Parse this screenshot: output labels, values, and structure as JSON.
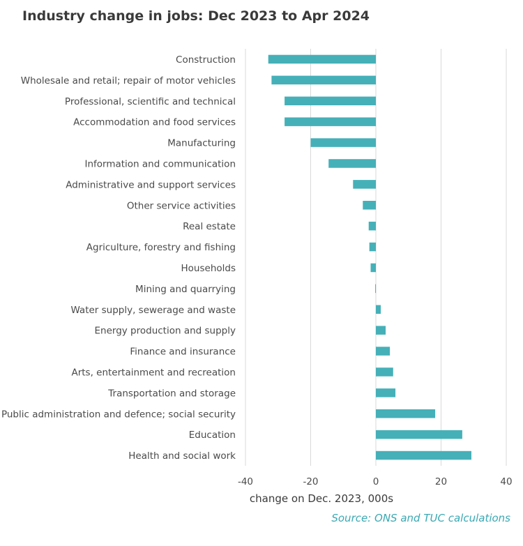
{
  "title": "Industry change in jobs:  Dec 2023 to Apr 2024",
  "source": "Source: ONS and TUC calculations",
  "chart_data": {
    "type": "bar",
    "orientation": "horizontal",
    "title": "Industry change in jobs:  Dec 2023 to Apr 2024",
    "xlabel": "change on Dec. 2023, 000s",
    "ylabel": "",
    "xlim": [
      -40,
      40
    ],
    "xticks": [
      "-40",
      "-20",
      "0",
      "20",
      "40"
    ],
    "grid": true,
    "bar_color": "#45b0b8",
    "categories": [
      "Construction",
      "Wholesale and retail; repair of motor vehicles",
      "Professional, scientific and technical",
      "Accommodation and food services",
      "Manufacturing",
      "Information and communication",
      "Administrative and support services",
      "Other service activities",
      "Real estate",
      "Agriculture, forestry and fishing",
      "Households",
      "Mining and quarrying",
      "Water supply, sewerage and waste",
      "Energy production and supply",
      "Finance and insurance",
      "Arts, entertainment and recreation",
      "Transportation and storage",
      "Public administration and defence; social security",
      "Education",
      "Health and social work"
    ],
    "values": [
      -33,
      -32,
      -28,
      -28,
      -20,
      -14.5,
      -7,
      -4,
      -2.2,
      -2,
      -1.6,
      -0.2,
      1.5,
      3,
      4.3,
      5.3,
      6,
      18.2,
      26.5,
      29.3
    ]
  }
}
